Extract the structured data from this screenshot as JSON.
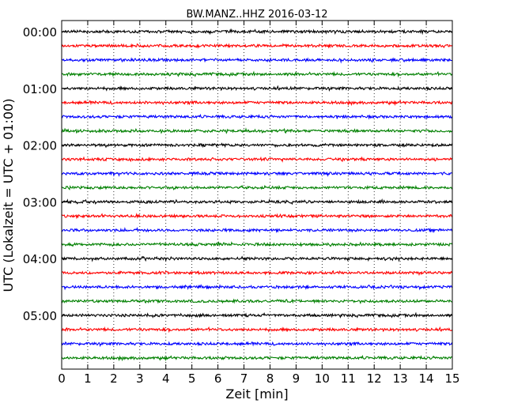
{
  "chart_data": {
    "type": "line",
    "title": "BW.MANZ..HHZ 2016-03-12",
    "xlabel": "Zeit  [min]",
    "ylabel": "UTC (Lokalzeit = UTC + 01:00)",
    "xlim": [
      0,
      15
    ],
    "x_ticks": [
      0,
      1,
      2,
      3,
      4,
      5,
      6,
      7,
      8,
      9,
      10,
      11,
      12,
      13,
      14,
      15
    ],
    "x_tick_labels": [
      "0",
      "1",
      "2",
      "3",
      "4",
      "5",
      "6",
      "7",
      "8",
      "9",
      "10",
      "11",
      "12",
      "13",
      "14",
      "15"
    ],
    "y_tick_labels": [
      "00:00",
      "01:00",
      "02:00",
      "03:00",
      "04:00",
      "05:00"
    ],
    "x_grid": "dotted vertical at each minute",
    "trace_interval_min": 15,
    "trace_count": 24,
    "trace_colors": [
      "#000000",
      "#ff0000",
      "#0000ff",
      "#008000"
    ],
    "series": [
      {
        "start": "00:00",
        "color": "#000000"
      },
      {
        "start": "00:15",
        "color": "#ff0000"
      },
      {
        "start": "00:30",
        "color": "#0000ff"
      },
      {
        "start": "00:45",
        "color": "#008000"
      },
      {
        "start": "01:00",
        "color": "#000000"
      },
      {
        "start": "01:15",
        "color": "#ff0000"
      },
      {
        "start": "01:30",
        "color": "#0000ff"
      },
      {
        "start": "01:45",
        "color": "#008000"
      },
      {
        "start": "02:00",
        "color": "#000000"
      },
      {
        "start": "02:15",
        "color": "#ff0000"
      },
      {
        "start": "02:30",
        "color": "#0000ff"
      },
      {
        "start": "02:45",
        "color": "#008000"
      },
      {
        "start": "03:00",
        "color": "#000000"
      },
      {
        "start": "03:15",
        "color": "#ff0000"
      },
      {
        "start": "03:30",
        "color": "#0000ff"
      },
      {
        "start": "03:45",
        "color": "#008000"
      },
      {
        "start": "04:00",
        "color": "#000000"
      },
      {
        "start": "04:15",
        "color": "#ff0000"
      },
      {
        "start": "04:30",
        "color": "#0000ff"
      },
      {
        "start": "04:45",
        "color": "#008000"
      },
      {
        "start": "05:00",
        "color": "#000000"
      },
      {
        "start": "05:15",
        "color": "#ff0000"
      },
      {
        "start": "05:30",
        "color": "#0000ff"
      },
      {
        "start": "05:45",
        "color": "#008000"
      }
    ]
  }
}
